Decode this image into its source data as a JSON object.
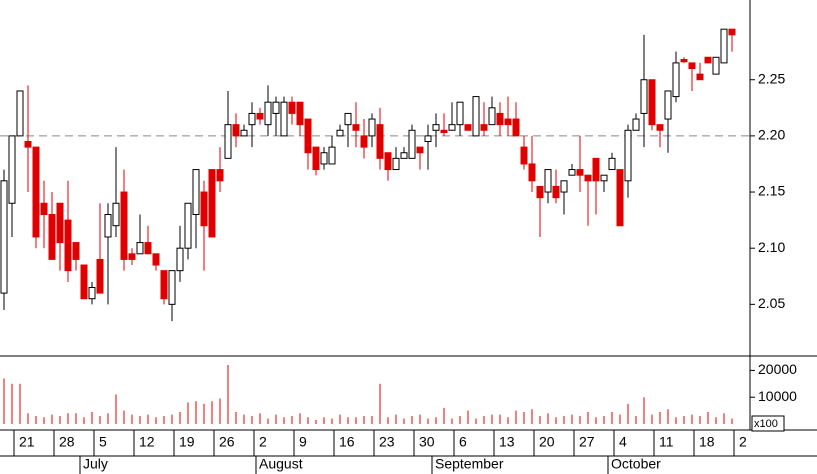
{
  "chart_data": [
    {
      "type": "candlestick",
      "categories": [
        null,
        null,
        "21",
        null,
        null,
        null,
        null,
        "28",
        null,
        null,
        null,
        null,
        "5",
        null,
        null,
        null,
        null,
        "12",
        null,
        null,
        null,
        null,
        "19",
        null,
        null,
        null,
        null,
        "26",
        null,
        null,
        null,
        null,
        "2",
        null,
        null,
        null,
        null,
        "9",
        null,
        null,
        null,
        null,
        "16",
        null,
        null,
        null,
        null,
        "23",
        null,
        null,
        null,
        null,
        "30",
        null,
        null,
        null,
        null,
        "6",
        null,
        null,
        null,
        null,
        "13",
        null,
        null,
        null,
        null,
        "20",
        null,
        null,
        null,
        null,
        "27",
        null,
        null,
        null,
        null,
        "4",
        null,
        null,
        null,
        null,
        "11",
        null,
        null,
        null,
        null,
        "18",
        null,
        null,
        null,
        null,
        "2"
      ],
      "months": [
        null,
        null,
        null,
        null,
        null,
        null,
        null,
        null,
        null,
        null,
        "July",
        null,
        null,
        null,
        null,
        null,
        null,
        null,
        null,
        null,
        null,
        null,
        null,
        null,
        null,
        null,
        null,
        null,
        null,
        null,
        null,
        null,
        "August",
        null,
        null,
        null,
        null,
        null,
        null,
        null,
        null,
        null,
        null,
        null,
        null,
        null,
        null,
        null,
        null,
        null,
        null,
        null,
        null,
        null,
        "September",
        null,
        null,
        null,
        null,
        null,
        null,
        null,
        null,
        null,
        null,
        null,
        null,
        null,
        null,
        null,
        null,
        null,
        null,
        null,
        null,
        null,
        "October",
        null,
        null,
        null,
        null,
        null,
        null,
        null,
        null,
        null,
        null,
        null,
        null,
        null,
        null,
        null,
        null
      ],
      "open": [
        2.06,
        2.14,
        2.2,
        2.195,
        2.19,
        2.14,
        2.13,
        2.14,
        2.125,
        2.105,
        2.085,
        2.055,
        2.09,
        2.11,
        2.12,
        2.15,
        2.095,
        2.095,
        2.105,
        2.095,
        2.08,
        2.05,
        2.08,
        2.1,
        2.13,
        2.15,
        2.17,
        2.17,
        2.18,
        2.21,
        2.2,
        2.21,
        2.22,
        2.21,
        2.22,
        2.2,
        2.23,
        2.23,
        2.215,
        2.19,
        2.175,
        2.175,
        2.2,
        2.21,
        2.21,
        2.2,
        2.2,
        2.21,
        2.185,
        2.17,
        2.18,
        2.18,
        2.19,
        2.195,
        2.205,
        2.205,
        2.205,
        2.21,
        2.21,
        2.2,
        2.21,
        2.21,
        2.22,
        2.215,
        2.215,
        2.19,
        2.175,
        2.155,
        2.15,
        2.155,
        2.15,
        2.165,
        2.17,
        2.165,
        2.18,
        2.16,
        2.17,
        2.17,
        2.16,
        2.205,
        2.22,
        2.25,
        2.21,
        2.215,
        2.235,
        2.268,
        2.265,
        2.255,
        2.27,
        2.255,
        2.265,
        2.295,
        null
      ],
      "high": [
        2.17,
        2.2,
        2.24,
        2.245,
        2.19,
        2.16,
        2.15,
        2.14,
        2.16,
        2.105,
        2.085,
        2.07,
        2.14,
        2.14,
        2.19,
        2.17,
        2.1,
        2.13,
        2.12,
        2.095,
        2.08,
        2.08,
        2.12,
        2.14,
        2.17,
        2.16,
        2.17,
        2.19,
        2.24,
        2.22,
        2.21,
        2.23,
        2.225,
        2.245,
        2.235,
        2.235,
        2.235,
        2.23,
        2.215,
        2.19,
        2.19,
        2.2,
        2.21,
        2.22,
        2.23,
        2.215,
        2.22,
        2.225,
        2.185,
        2.19,
        2.19,
        2.21,
        2.19,
        2.21,
        2.22,
        2.22,
        2.23,
        2.23,
        2.21,
        2.235,
        2.23,
        2.235,
        2.23,
        2.235,
        2.23,
        2.2,
        2.2,
        2.155,
        2.17,
        2.17,
        2.16,
        2.175,
        2.2,
        2.165,
        2.18,
        2.165,
        2.185,
        2.17,
        2.21,
        2.22,
        2.29,
        2.25,
        2.21,
        2.24,
        2.275,
        2.27,
        2.265,
        2.265,
        2.27,
        2.27,
        2.295,
        2.295,
        null
      ],
      "low": [
        2.045,
        2.11,
        2.2,
        2.15,
        2.1,
        2.1,
        2.09,
        2.08,
        2.07,
        2.08,
        2.055,
        2.05,
        2.06,
        2.05,
        2.11,
        2.08,
        2.085,
        2.095,
        2.095,
        2.08,
        2.05,
        2.035,
        2.07,
        2.09,
        2.1,
        2.08,
        2.11,
        2.15,
        2.18,
        2.19,
        2.2,
        2.19,
        2.21,
        2.2,
        2.2,
        2.2,
        2.21,
        2.2,
        2.17,
        2.165,
        2.17,
        2.175,
        2.2,
        2.19,
        2.19,
        2.18,
        2.19,
        2.17,
        2.16,
        2.17,
        2.18,
        2.18,
        2.17,
        2.17,
        2.19,
        2.2,
        2.205,
        2.2,
        2.205,
        2.2,
        2.2,
        2.21,
        2.2,
        2.2,
        2.2,
        2.17,
        2.15,
        2.11,
        2.14,
        2.14,
        2.13,
        2.165,
        2.15,
        2.12,
        2.13,
        2.15,
        2.17,
        2.12,
        2.145,
        2.205,
        2.19,
        2.205,
        2.19,
        2.185,
        2.23,
        2.265,
        2.24,
        2.25,
        2.265,
        2.255,
        2.265,
        2.275,
        null
      ],
      "close": [
        2.16,
        2.2,
        2.24,
        2.19,
        2.11,
        2.13,
        2.09,
        2.105,
        2.08,
        2.09,
        2.055,
        2.065,
        2.06,
        2.13,
        2.14,
        2.09,
        2.09,
        2.105,
        2.095,
        2.085,
        2.055,
        2.08,
        2.1,
        2.14,
        2.17,
        2.12,
        2.11,
        2.16,
        2.21,
        2.2,
        2.205,
        2.22,
        2.215,
        2.23,
        2.23,
        2.23,
        2.22,
        2.21,
        2.185,
        2.17,
        2.185,
        2.19,
        2.205,
        2.22,
        2.205,
        2.19,
        2.215,
        2.18,
        2.17,
        2.18,
        2.185,
        2.205,
        2.185,
        2.2,
        2.21,
        2.203,
        2.21,
        2.23,
        2.205,
        2.235,
        2.205,
        2.225,
        2.21,
        2.21,
        2.2,
        2.175,
        2.16,
        2.145,
        2.17,
        2.145,
        2.16,
        2.17,
        2.165,
        2.16,
        2.16,
        2.165,
        2.18,
        2.12,
        2.205,
        2.215,
        2.25,
        2.21,
        2.205,
        2.24,
        2.265,
        2.266,
        2.26,
        2.25,
        2.265,
        2.27,
        2.295,
        2.29,
        null
      ],
      "up_color": "#ffffff",
      "down_color": "#e00000",
      "ylim": [
        2.004,
        2.321
      ],
      "yticks": [
        2.05,
        {
          "value": 2.1,
          "label": "2.10"
        },
        2.15,
        {
          "value": 2.2,
          "label": "2.20"
        },
        2.25
      ],
      "reference_line": 2.2
    },
    {
      "type": "volume",
      "values": [
        17000,
        15000,
        15000,
        4000,
        3000,
        2500,
        3500,
        3000,
        4000,
        4000,
        2500,
        4500,
        3000,
        4000,
        11000,
        5000,
        3500,
        3000,
        3500,
        2500,
        3000,
        3500,
        4500,
        8000,
        8500,
        7500,
        8500,
        9500,
        22000,
        4500,
        3500,
        3000,
        4000,
        2000,
        3500,
        2500,
        3000,
        4000,
        2500,
        1500,
        2500,
        2000,
        3500,
        2500,
        2500,
        3000,
        3000,
        15000,
        2500,
        3500,
        2000,
        3000,
        3500,
        2000,
        2500,
        6000,
        2000,
        3000,
        5000,
        2000,
        3000,
        3500,
        3500,
        2500,
        5000,
        4500,
        5500,
        3000,
        4000,
        2500,
        3000,
        3500,
        3000,
        4500,
        2500,
        3000,
        4500,
        3500,
        7500,
        3000,
        10000,
        3500,
        4500,
        5500,
        2500,
        3000,
        3500,
        3000,
        4500,
        2500,
        4000,
        2000,
        null
      ],
      "color": "#e00000",
      "ylim": [
        0,
        25000
      ],
      "yticks": [
        10000,
        20000
      ],
      "unit_label": "x100"
    }
  ]
}
